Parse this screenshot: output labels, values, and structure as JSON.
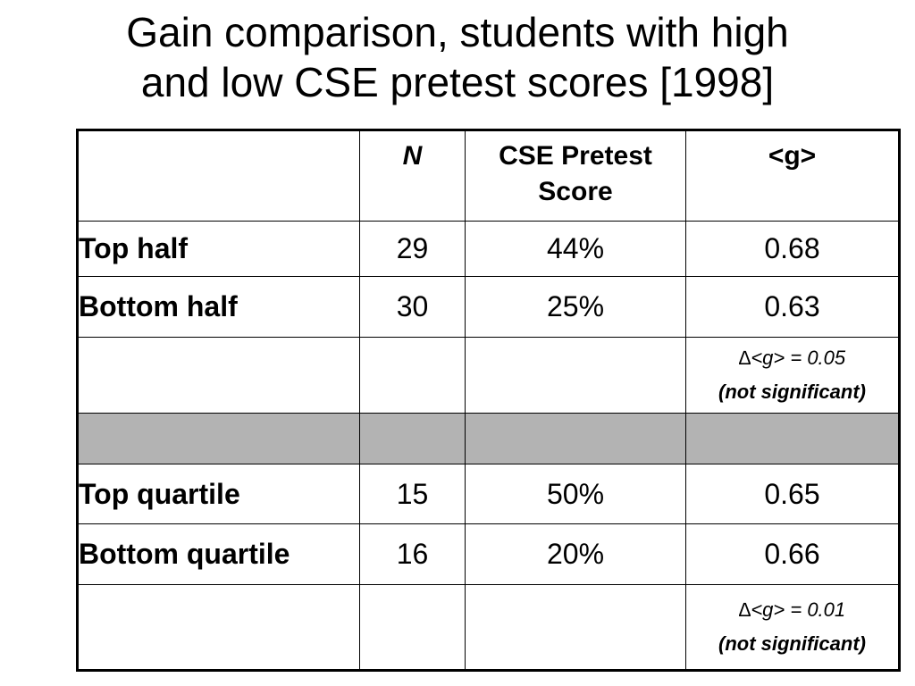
{
  "title": {
    "line1": "Gain comparison, students with high",
    "line2": "and low CSE pretest scores [1998]"
  },
  "table": {
    "headers": {
      "col1": "",
      "col2": "N",
      "col3_line1": "CSE Pretest",
      "col3_line2": "Score",
      "col4": "<g>"
    },
    "rows": [
      {
        "label": "Top half",
        "n": "29",
        "pretest": "44%",
        "g": "0.68"
      },
      {
        "label": "Bottom half",
        "n": "30",
        "pretest": "25%",
        "g": "0.63"
      },
      {
        "label": "Top quartile",
        "n": "15",
        "pretest": "50%",
        "g": "0.65"
      },
      {
        "label": "Bottom quartile",
        "n": "16",
        "pretest": "20%",
        "g": "0.66"
      }
    ],
    "notes": [
      {
        "delta": "∆<g> = 0.05",
        "significance": "(not significant)"
      },
      {
        "delta": "∆<g> = 0.01",
        "significance": "(not significant)"
      }
    ],
    "separator_color": "#b3b3b3"
  }
}
